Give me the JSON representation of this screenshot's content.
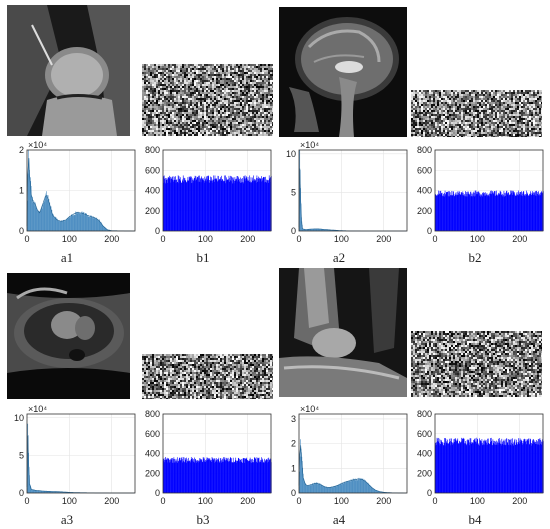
{
  "colors": {
    "original_bar": "#4f8fc2",
    "original_edge": "#1f5f8f",
    "cipher_bar": "#0000ff"
  },
  "panels": [
    {
      "label": "a1",
      "scan": "knee MRI",
      "exp_label": "×10⁴",
      "ytick_labels": [
        "0",
        "1",
        "2"
      ]
    },
    {
      "label": "b1",
      "scan": "encrypted noise",
      "exp_label": "",
      "ytick_labels": [
        "0",
        "200",
        "400",
        "600",
        "800"
      ]
    },
    {
      "label": "a2",
      "scan": "brain sagittal MRI",
      "exp_label": "×10⁴",
      "ytick_labels": [
        "0",
        "5",
        "10"
      ]
    },
    {
      "label": "b2",
      "scan": "encrypted noise",
      "exp_label": "",
      "ytick_labels": [
        "0",
        "200",
        "400",
        "600",
        "800"
      ]
    },
    {
      "label": "a3",
      "scan": "chest axial MRI",
      "exp_label": "×10⁴",
      "ytick_labels": [
        "0",
        "5",
        "10"
      ]
    },
    {
      "label": "b3",
      "scan": "encrypted noise",
      "exp_label": "",
      "ytick_labels": [
        "0",
        "200",
        "400",
        "600",
        "800"
      ]
    },
    {
      "label": "a4",
      "scan": "ankle MRI",
      "exp_label": "×10⁴",
      "ytick_labels": [
        "0",
        "1",
        "2",
        "3"
      ]
    },
    {
      "label": "b4",
      "scan": "encrypted noise",
      "exp_label": "",
      "ytick_labels": [
        "0",
        "200",
        "400",
        "600",
        "800"
      ]
    }
  ],
  "chart_data": [
    {
      "type": "bar",
      "title": "a1",
      "xlim": [
        0,
        255
      ],
      "ylim": [
        0,
        20000
      ],
      "grid": true,
      "xticks": [
        "0",
        "100",
        "200"
      ],
      "profile": [
        [
          0,
          1200
        ],
        [
          3,
          20000
        ],
        [
          6,
          14000
        ],
        [
          10,
          9000
        ],
        [
          15,
          7000
        ],
        [
          20,
          6500
        ],
        [
          25,
          5000
        ],
        [
          30,
          4500
        ],
        [
          35,
          6000
        ],
        [
          40,
          7500
        ],
        [
          45,
          9000
        ],
        [
          50,
          7800
        ],
        [
          55,
          6000
        ],
        [
          60,
          4000
        ],
        [
          70,
          2800
        ],
        [
          80,
          2400
        ],
        [
          90,
          2600
        ],
        [
          100,
          3500
        ],
        [
          110,
          4200
        ],
        [
          120,
          4600
        ],
        [
          130,
          4400
        ],
        [
          140,
          4000
        ],
        [
          150,
          3600
        ],
        [
          160,
          3300
        ],
        [
          170,
          2600
        ],
        [
          180,
          1200
        ],
        [
          190,
          300
        ],
        [
          200,
          80
        ],
        [
          255,
          0
        ]
      ]
    },
    {
      "type": "bar",
      "title": "b1",
      "xlim": [
        0,
        255
      ],
      "ylim": [
        0,
        800
      ],
      "grid": true,
      "xticks": [
        "0",
        "100",
        "200"
      ],
      "mean": 510,
      "spread": 40
    },
    {
      "type": "bar",
      "title": "a2",
      "xlim": [
        0,
        255
      ],
      "ylim": [
        0,
        105000
      ],
      "grid": true,
      "xticks": [
        "0",
        "100",
        "200"
      ],
      "profile": [
        [
          0,
          5000
        ],
        [
          1,
          102000
        ],
        [
          3,
          60000
        ],
        [
          5,
          18000
        ],
        [
          8,
          3000
        ],
        [
          15,
          1800
        ],
        [
          30,
          2600
        ],
        [
          45,
          2800
        ],
        [
          60,
          2000
        ],
        [
          80,
          1200
        ],
        [
          100,
          500
        ],
        [
          120,
          150
        ],
        [
          150,
          50
        ],
        [
          255,
          0
        ]
      ]
    },
    {
      "type": "bar",
      "title": "b2",
      "xlim": [
        0,
        255
      ],
      "ylim": [
        0,
        800
      ],
      "grid": true,
      "xticks": [
        "0",
        "100",
        "200"
      ],
      "mean": 370,
      "spread": 30
    },
    {
      "type": "bar",
      "title": "a3",
      "xlim": [
        0,
        255
      ],
      "ylim": [
        0,
        105000
      ],
      "grid": true,
      "xticks": [
        "0",
        "100",
        "200"
      ],
      "profile": [
        [
          0,
          8000
        ],
        [
          1,
          102000
        ],
        [
          3,
          50000
        ],
        [
          6,
          12000
        ],
        [
          10,
          5000
        ],
        [
          20,
          3500
        ],
        [
          40,
          2500
        ],
        [
          60,
          2000
        ],
        [
          80,
          1600
        ],
        [
          100,
          900
        ],
        [
          120,
          500
        ],
        [
          150,
          250
        ],
        [
          180,
          80
        ],
        [
          255,
          0
        ]
      ]
    },
    {
      "type": "bar",
      "title": "b3",
      "xlim": [
        0,
        255
      ],
      "ylim": [
        0,
        800
      ],
      "grid": true,
      "xticks": [
        "0",
        "100",
        "200"
      ],
      "mean": 335,
      "spread": 30
    },
    {
      "type": "bar",
      "title": "a4",
      "xlim": [
        0,
        255
      ],
      "ylim": [
        0,
        32000
      ],
      "grid": true,
      "xticks": [
        "0",
        "100",
        "200"
      ],
      "profile": [
        [
          0,
          3000
        ],
        [
          3,
          22000
        ],
        [
          6,
          14000
        ],
        [
          10,
          6000
        ],
        [
          15,
          3500
        ],
        [
          20,
          3000
        ],
        [
          30,
          3500
        ],
        [
          40,
          4000
        ],
        [
          50,
          3500
        ],
        [
          60,
          2500
        ],
        [
          70,
          2200
        ],
        [
          80,
          2500
        ],
        [
          90,
          3000
        ],
        [
          100,
          3800
        ],
        [
          110,
          4500
        ],
        [
          120,
          5000
        ],
        [
          130,
          5400
        ],
        [
          140,
          5700
        ],
        [
          150,
          5500
        ],
        [
          160,
          4200
        ],
        [
          170,
          2500
        ],
        [
          180,
          1200
        ],
        [
          190,
          600
        ],
        [
          200,
          300
        ],
        [
          220,
          100
        ],
        [
          255,
          0
        ]
      ]
    },
    {
      "type": "bar",
      "title": "b4",
      "xlim": [
        0,
        255
      ],
      "ylim": [
        0,
        800
      ],
      "grid": true,
      "xticks": [
        "0",
        "100",
        "200"
      ],
      "mean": 520,
      "spread": 40
    }
  ]
}
